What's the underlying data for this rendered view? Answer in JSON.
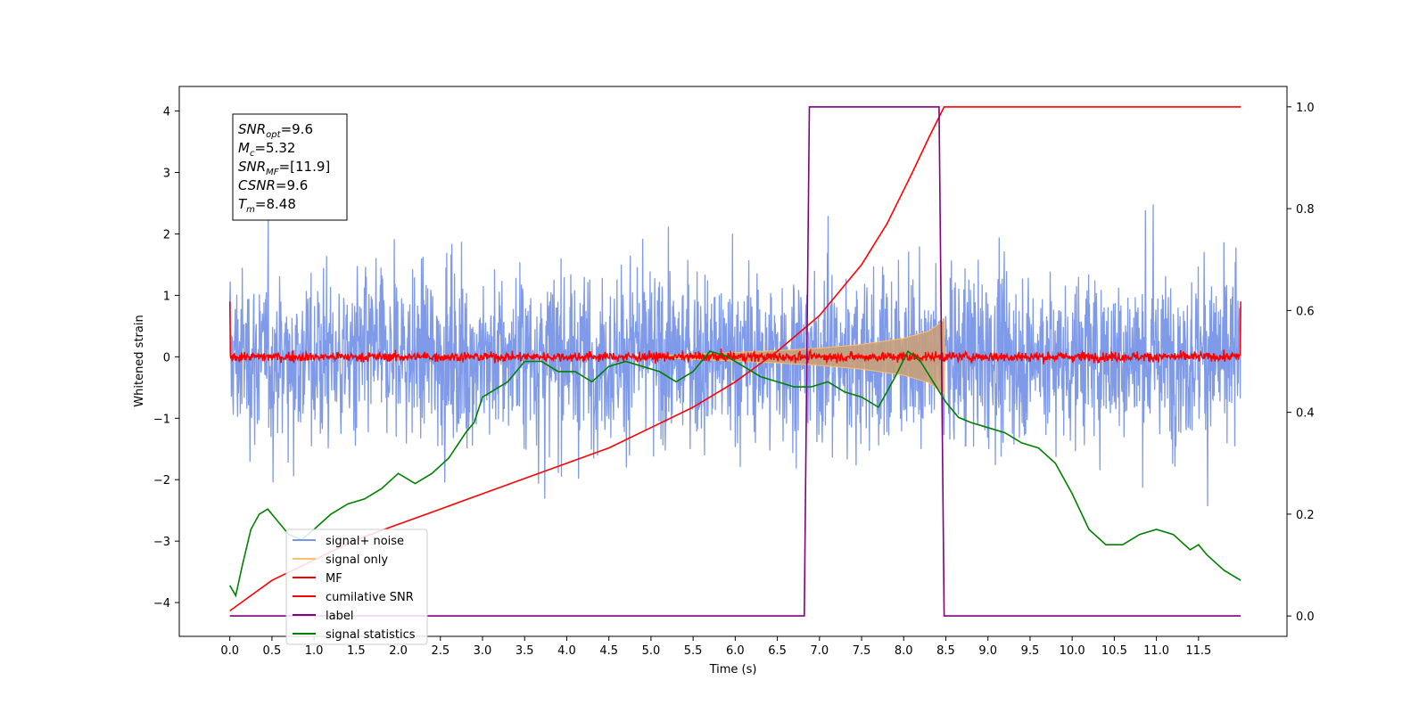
{
  "chart_data": {
    "type": "line",
    "title": "",
    "xlabel": "Time (s)",
    "ylabel": "Whitened strain",
    "ylabel_right": "",
    "xlim": [
      -0.6,
      12.55
    ],
    "ylim": [
      -4.55,
      4.4
    ],
    "ylim_right": [
      -0.04,
      1.04
    ],
    "x_ticks": [
      "0.0",
      "0.5",
      "1.0",
      "1.5",
      "2.0",
      "2.5",
      "3.0",
      "3.5",
      "4.0",
      "4.5",
      "5.0",
      "5.5",
      "6.0",
      "6.5",
      "7.0",
      "7.5",
      "8.0",
      "8.5",
      "9.0",
      "9.5",
      "10.0",
      "10.5",
      "11.0",
      "11.5"
    ],
    "y_ticks_left": [
      "4",
      "3",
      "2",
      "1",
      "0",
      "−1",
      "−2",
      "−3",
      "−4"
    ],
    "y_ticks_right": [
      "1.0",
      "0.8",
      "0.6",
      "0.4",
      "0.2",
      "0.0"
    ],
    "grid": false,
    "legend_location": "lower-left",
    "annotation": {
      "lines": [
        {
          "name": "SNR",
          "sub": "opt",
          "value": "=9.6"
        },
        {
          "name": "M",
          "sub": "c",
          "value": "=5.32"
        },
        {
          "name": "SNR",
          "sub": "MF",
          "value": "=[11.9]"
        },
        {
          "name": "CSNR",
          "sub": "",
          "value": "=9.6"
        },
        {
          "name": "T",
          "sub": "m",
          "value": "=8.48"
        }
      ]
    },
    "series": [
      {
        "name": "signal+ noise",
        "axis": "left",
        "color": "#7895e8",
        "note": "whitened noisy strain, roughly spanning -2.5..2.5 with spikes to ±3.9",
        "x_range": [
          0.0,
          12.0
        ],
        "amplitude_typical": 2.5,
        "amplitude_peak": 3.9
      },
      {
        "name": "signal only",
        "axis": "left",
        "color": "#ffbf66",
        "note": "chirp envelope growing from ~0 at 5.0 s to ±0.6 at 8.48 s",
        "envelope_x": [
          5.0,
          5.5,
          6.0,
          6.5,
          7.0,
          7.5,
          8.0,
          8.3,
          8.48
        ],
        "envelope_y": [
          0.02,
          0.04,
          0.07,
          0.1,
          0.14,
          0.2,
          0.3,
          0.42,
          0.6
        ]
      },
      {
        "name": "MF",
        "axis": "left",
        "color": "#ff0000",
        "note": "matched-filter output, noise around 0 within ±0.2, spike to 1.0 at edges",
        "x_range": [
          0.0,
          12.0
        ],
        "amplitude_typical": 0.1
      },
      {
        "name": "cumilative SNR",
        "axis": "right",
        "color": "#ff0000",
        "x": [
          0.0,
          0.5,
          1.0,
          1.5,
          2.0,
          2.5,
          3.0,
          3.5,
          4.0,
          4.5,
          5.0,
          5.5,
          6.0,
          6.5,
          7.0,
          7.5,
          7.8,
          8.1,
          8.3,
          8.48,
          9.0,
          10.0,
          11.0,
          12.0
        ],
        "y": [
          0.01,
          0.07,
          0.11,
          0.15,
          0.18,
          0.21,
          0.24,
          0.27,
          0.3,
          0.33,
          0.37,
          0.41,
          0.46,
          0.52,
          0.59,
          0.69,
          0.77,
          0.87,
          0.94,
          1.0,
          1.0,
          1.0,
          1.0,
          1.0
        ]
      },
      {
        "name": "label",
        "axis": "right",
        "color": "#800080",
        "x": [
          0.0,
          6.82,
          6.88,
          8.42,
          8.48,
          12.0
        ],
        "y": [
          0.0,
          0.0,
          1.0,
          1.0,
          0.0,
          0.0
        ]
      },
      {
        "name": "signal statistics",
        "axis": "right",
        "color": "#008000",
        "x": [
          0.0,
          0.07,
          0.15,
          0.25,
          0.35,
          0.45,
          0.55,
          0.7,
          0.85,
          1.0,
          1.2,
          1.4,
          1.6,
          1.8,
          2.0,
          2.2,
          2.4,
          2.6,
          2.8,
          2.9,
          3.0,
          3.1,
          3.2,
          3.3,
          3.4,
          3.5,
          3.7,
          3.9,
          4.1,
          4.3,
          4.5,
          4.7,
          4.9,
          5.1,
          5.3,
          5.5,
          5.7,
          5.9,
          6.1,
          6.3,
          6.5,
          6.7,
          6.9,
          7.1,
          7.3,
          7.5,
          7.7,
          7.9,
          8.05,
          8.2,
          8.35,
          8.5,
          8.65,
          8.8,
          9.0,
          9.2,
          9.4,
          9.6,
          9.8,
          10.0,
          10.2,
          10.4,
          10.6,
          10.8,
          11.0,
          11.2,
          11.4,
          11.5,
          11.6,
          11.8,
          12.0
        ],
        "y": [
          0.06,
          0.04,
          0.1,
          0.17,
          0.2,
          0.21,
          0.19,
          0.16,
          0.15,
          0.17,
          0.2,
          0.22,
          0.23,
          0.25,
          0.28,
          0.26,
          0.28,
          0.31,
          0.36,
          0.38,
          0.43,
          0.44,
          0.45,
          0.46,
          0.48,
          0.5,
          0.5,
          0.48,
          0.48,
          0.46,
          0.49,
          0.5,
          0.49,
          0.48,
          0.46,
          0.48,
          0.52,
          0.51,
          0.49,
          0.47,
          0.46,
          0.45,
          0.45,
          0.46,
          0.44,
          0.43,
          0.41,
          0.47,
          0.52,
          0.5,
          0.46,
          0.42,
          0.39,
          0.38,
          0.37,
          0.36,
          0.34,
          0.33,
          0.3,
          0.24,
          0.17,
          0.14,
          0.14,
          0.16,
          0.17,
          0.16,
          0.13,
          0.14,
          0.12,
          0.09,
          0.07
        ]
      }
    ]
  }
}
